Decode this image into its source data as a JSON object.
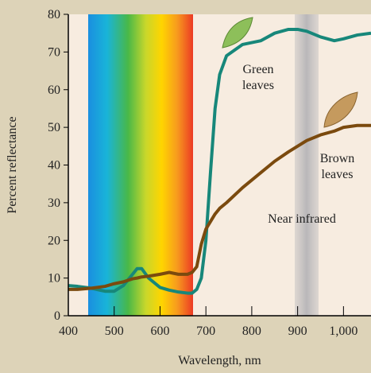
{
  "chart_data": {
    "type": "line",
    "x_label": "Wavelength, nm",
    "y_label": "Percent reflectance",
    "annotation": "Near infrared",
    "x": [
      400,
      420,
      450,
      480,
      500,
      520,
      540,
      550,
      560,
      575,
      600,
      620,
      640,
      660,
      670,
      680,
      690,
      700,
      710,
      720,
      730,
      745,
      780,
      820,
      850,
      880,
      900,
      920,
      950,
      980,
      1000,
      1030,
      1060
    ],
    "series": [
      {
        "name": "Green leaves",
        "color": "#17877a",
        "values": [
          8,
          7.8,
          7.3,
          6.5,
          6.5,
          8,
          11,
          12.5,
          12.5,
          10,
          7.5,
          6.8,
          6.3,
          6,
          6,
          7,
          10,
          20,
          38,
          55,
          64,
          69,
          72,
          73,
          75,
          76,
          76,
          75.5,
          74,
          73,
          73.5,
          74.5,
          75
        ]
      },
      {
        "name": "Brown leaves",
        "color": "#7b4a0e",
        "values": [
          7,
          7,
          7.3,
          7.8,
          8.5,
          9,
          9.8,
          10,
          10.3,
          10.5,
          11,
          11.5,
          11,
          11,
          11.5,
          13,
          19,
          23,
          25,
          27,
          28.5,
          30,
          34,
          38,
          41,
          43.5,
          45,
          46.5,
          48,
          49,
          50,
          50.5,
          50.5
        ]
      }
    ],
    "xlim": [
      400,
      1060
    ],
    "ylim": [
      0,
      80
    ],
    "xticks": [
      400,
      500,
      600,
      700,
      800,
      900,
      {
        "value": 1000,
        "label": "1,000"
      }
    ],
    "yticks": [
      0,
      10,
      20,
      30,
      40,
      50,
      60,
      70,
      80
    ]
  }
}
